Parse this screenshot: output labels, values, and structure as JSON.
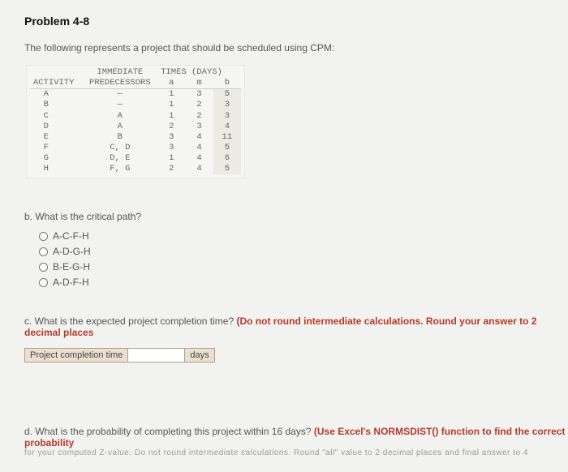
{
  "problem": {
    "title": "Problem 4-8",
    "intro": "The following represents a project that should be scheduled using CPM:"
  },
  "table": {
    "times_header": "TIMES (DAYS)",
    "col_activity": "ACTIVITY",
    "col_pred_top": "IMMEDIATE",
    "col_pred_bot": "PREDECESSORS",
    "col_a": "a",
    "col_m": "m",
    "col_b": "b",
    "rows": [
      {
        "activity": "A",
        "pred": "—",
        "a": "1",
        "m": "3",
        "b": "5"
      },
      {
        "activity": "B",
        "pred": "—",
        "a": "1",
        "m": "2",
        "b": "3"
      },
      {
        "activity": "C",
        "pred": "A",
        "a": "1",
        "m": "2",
        "b": "3"
      },
      {
        "activity": "D",
        "pred": "A",
        "a": "2",
        "m": "3",
        "b": "4"
      },
      {
        "activity": "E",
        "pred": "B",
        "a": "3",
        "m": "4",
        "b": "11"
      },
      {
        "activity": "F",
        "pred": "C, D",
        "a": "3",
        "m": "4",
        "b": "5"
      },
      {
        "activity": "G",
        "pred": "D, E",
        "a": "1",
        "m": "4",
        "b": "6"
      },
      {
        "activity": "H",
        "pred": "F, G",
        "a": "2",
        "m": "4",
        "b": "5"
      }
    ]
  },
  "part_b": {
    "label": "b. What is the critical path?",
    "choices": [
      "A-C-F-H",
      "A-D-G-H",
      "B-E-G-H",
      "A-D-F-H"
    ]
  },
  "part_c": {
    "prefix": "c. What is the expected project completion time? ",
    "red": "(Do not round intermediate calculations. Round your answer to 2 decimal places",
    "field_label": "Project completion time",
    "unit": "days"
  },
  "part_d": {
    "prefix": "d. What is the probability of completing this project within 16 days? ",
    "red": "(Use Excel's NORMSDIST() function to find the correct probability",
    "cutoff": "for your computed Z-value.  Do not round intermediate calculations.  Round \"all\" value to 2 decimal places and final answer to 4"
  }
}
